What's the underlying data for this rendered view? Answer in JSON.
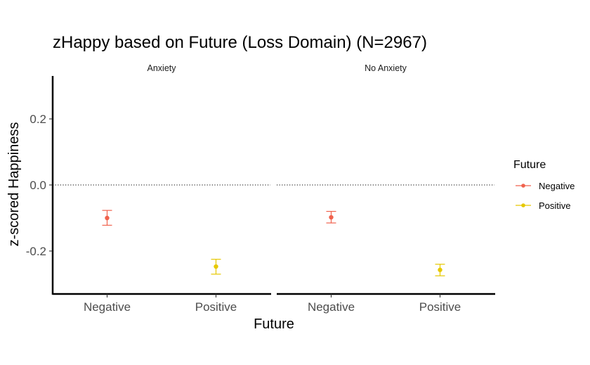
{
  "chart_data": {
    "type": "errorbar",
    "title": "zHappy based on Future (Loss Domain) (N=2967)",
    "xlabel": "Future",
    "ylabel": "z-scored Happiness",
    "ylim": [
      -0.33,
      0.33
    ],
    "yticks": [
      0.2,
      0.0,
      -0.2
    ],
    "ytick_labels": [
      "0.2",
      "0.0",
      "-0.2"
    ],
    "reference_line": {
      "y": 0.0,
      "style": "dotted"
    },
    "grid": false,
    "legend": {
      "title": "Future",
      "placement": "right",
      "entries": [
        {
          "label": "Negative",
          "color": "#f0624d"
        },
        {
          "label": "Positive",
          "color": "#e6c800"
        }
      ]
    },
    "categories": [
      "Negative",
      "Positive"
    ],
    "panels": [
      {
        "label": "Anxiety",
        "points": [
          {
            "x": "Negative",
            "y": -0.1,
            "lower": -0.122,
            "upper": -0.077,
            "series": "Negative"
          },
          {
            "x": "Positive",
            "y": -0.247,
            "lower": -0.27,
            "upper": -0.225,
            "series": "Positive"
          }
        ]
      },
      {
        "label": "No Anxiety",
        "points": [
          {
            "x": "Negative",
            "y": -0.098,
            "lower": -0.115,
            "upper": -0.08,
            "series": "Negative"
          },
          {
            "x": "Positive",
            "y": -0.257,
            "lower": -0.275,
            "upper": -0.24,
            "series": "Positive"
          }
        ]
      }
    ]
  }
}
